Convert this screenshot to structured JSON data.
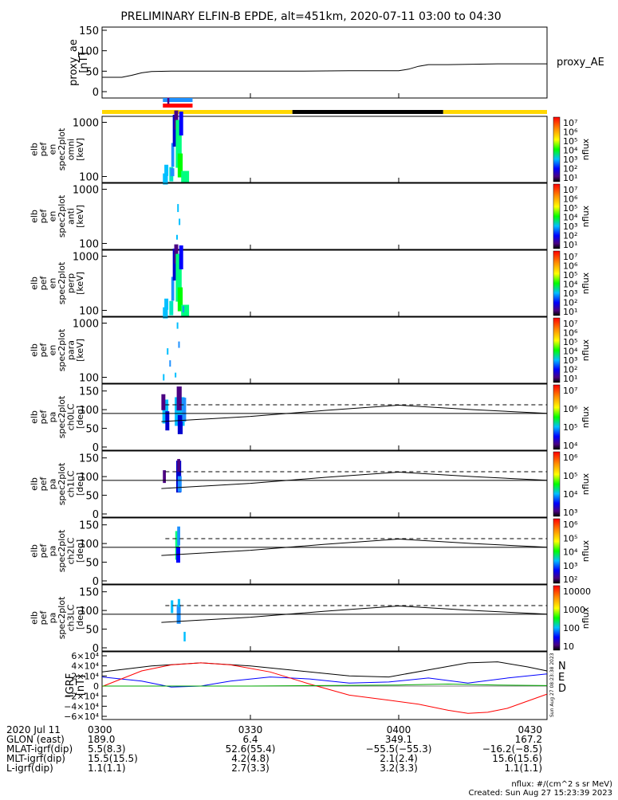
{
  "title": "PRELIMINARY ELFIN-B EPDE, alt=451km, 2020-07-11 03:00 to 04:30",
  "colors": {
    "bar_blue": "#1e90ff",
    "bar_red": "#ff0000",
    "sun_yellow": "#ffd700",
    "shadow_black": "#000000",
    "grf_n": "#000000",
    "grf_e": "#0000ff",
    "grf_d": "#ff0000",
    "grf_green": "#00aa00"
  },
  "panels": [
    {
      "id": "proxy_ae",
      "ylabel": [
        "proxy_ae",
        "[nT]"
      ],
      "right_label": "proxy_AE",
      "ticks": [
        "150",
        "100",
        "50",
        "0"
      ]
    },
    {
      "id": "omni",
      "ylabel": [
        "elb",
        "pef",
        "en",
        "spec2plot",
        "omni",
        "[keV]"
      ],
      "ticks": [
        "1000",
        "100"
      ],
      "cb_label": "nflux",
      "cb_ticks": [
        "10⁷",
        "10⁶",
        "10⁵",
        "10⁴",
        "10³",
        "10²",
        "10¹"
      ]
    },
    {
      "id": "anti",
      "ylabel": [
        "elb",
        "pef",
        "en",
        "spec2plot",
        "anti",
        "[keV]"
      ],
      "ticks": [
        "1000",
        "100"
      ],
      "cb_label": "nflux",
      "cb_ticks": [
        "10⁷",
        "10⁶",
        "10⁵",
        "10⁴",
        "10³",
        "10²",
        "10¹"
      ]
    },
    {
      "id": "perp",
      "ylabel": [
        "elb",
        "pef",
        "en",
        "spec2plot",
        "perp",
        "[keV]"
      ],
      "ticks": [
        "1000",
        "100"
      ],
      "cb_label": "nflux",
      "cb_ticks": [
        "10⁷",
        "10⁶",
        "10⁵",
        "10⁴",
        "10³",
        "10²",
        "10¹"
      ]
    },
    {
      "id": "para",
      "ylabel": [
        "elb",
        "pef",
        "en",
        "spec2plot",
        "para",
        "[keV]"
      ],
      "ticks": [
        "1000",
        "100"
      ],
      "cb_label": "nflux",
      "cb_ticks": [
        "10⁷",
        "10⁶",
        "10⁵",
        "10⁴",
        "10³",
        "10²",
        "10¹"
      ]
    },
    {
      "id": "ch0LC",
      "ylabel": [
        "elb",
        "pef",
        "pa",
        "spec2plot",
        "ch0LC",
        "[deg]"
      ],
      "ticks": [
        "150",
        "100",
        "50",
        "0"
      ],
      "cb_label": "nflux",
      "cb_ticks": [
        "10⁷",
        "10⁶",
        "10⁵",
        "10⁴"
      ]
    },
    {
      "id": "ch1LC",
      "ylabel": [
        "elb",
        "pef",
        "pa",
        "spec2plot",
        "ch1LC",
        "[deg]"
      ],
      "ticks": [
        "150",
        "100",
        "50",
        "0"
      ],
      "cb_label": "nflux",
      "cb_ticks": [
        "10⁶",
        "10⁵",
        "10⁴",
        "10³"
      ]
    },
    {
      "id": "ch2LC",
      "ylabel": [
        "elb",
        "pef",
        "pa",
        "spec2plot",
        "ch2LC",
        "[deg]"
      ],
      "ticks": [
        "150",
        "100",
        "50",
        "0"
      ],
      "cb_label": "nflux",
      "cb_ticks": [
        "10⁶",
        "10⁵",
        "10⁴",
        "10³",
        "10²"
      ]
    },
    {
      "id": "ch3LC",
      "ylabel": [
        "elb",
        "pef",
        "pa",
        "spec2plot",
        "ch3LC",
        "[deg]"
      ],
      "ticks": [
        "150",
        "100",
        "50",
        "0"
      ],
      "cb_label": "nflux",
      "cb_ticks": [
        "10000",
        "1000",
        "100",
        "10"
      ]
    },
    {
      "id": "igrf",
      "ylabel": [
        "IGRF",
        "[nT]"
      ],
      "ticks": [
        "6×10⁴",
        "4×10⁴",
        "2×10⁴",
        "0",
        "−2×10⁴",
        "−4×10⁴",
        "−6×10⁴"
      ],
      "legend": [
        "N",
        "E",
        "D"
      ]
    }
  ],
  "chart_data": {
    "type": "line",
    "title": "PRELIMINARY ELFIN-B EPDE, alt=451km, 2020-07-11 03:00 to 04:30",
    "x_range_minutes": [
      0,
      90
    ],
    "x_tick_labels": [
      "0300",
      "0330",
      "0400",
      "0430"
    ],
    "x_tick_minutes": [
      0,
      30,
      60,
      90
    ],
    "proxy_ae": {
      "ylim": [
        0,
        150
      ],
      "x": [
        0,
        4,
        6,
        8,
        10,
        14,
        20,
        30,
        40,
        50,
        60,
        62,
        64,
        66,
        70,
        80,
        90
      ],
      "y": [
        35,
        35,
        40,
        46,
        49,
        50,
        50,
        50,
        50,
        51,
        51,
        55,
        62,
        66,
        66,
        68,
        68
      ]
    },
    "sun_bar": [
      {
        "from": 0,
        "to": 38.5,
        "state": "sunlit"
      },
      {
        "from": 38.5,
        "to": 69,
        "state": "shadow"
      },
      {
        "from": 69,
        "to": 90,
        "state": "sunlit"
      }
    ],
    "science_bars": [
      {
        "from": 12.3,
        "to": 18.3,
        "color": "blue"
      },
      {
        "from": 12.3,
        "to": 18.3,
        "color": "red"
      }
    ],
    "pa_reference": {
      "solid_90": 90,
      "loss_cone_x": [
        12,
        30,
        45,
        60,
        75,
        90
      ],
      "loss_cone_y": [
        68,
        82,
        98,
        112,
        100,
        90
      ],
      "antiloss_cone_dashed": 113
    },
    "igrf": {
      "ylim": [
        -60000,
        60000
      ],
      "series": [
        {
          "name": "N",
          "x": [
            0,
            10,
            20,
            30,
            40,
            50,
            58,
            66,
            74,
            80,
            86,
            90
          ],
          "y": [
            28000,
            40000,
            46000,
            40000,
            30000,
            20000,
            18000,
            32000,
            46000,
            48000,
            38000,
            30000
          ]
        },
        {
          "name": "E",
          "x": [
            0,
            8,
            14,
            20,
            26,
            34,
            42,
            50,
            58,
            66,
            74,
            82,
            90
          ],
          "y": [
            18000,
            10000,
            -2000,
            0,
            10000,
            18000,
            14000,
            6000,
            8000,
            16000,
            6000,
            16000,
            24000
          ]
        },
        {
          "name": "D",
          "x": [
            0,
            8,
            14,
            20,
            26,
            34,
            42,
            50,
            58,
            64,
            70,
            74,
            78,
            82,
            86,
            90
          ],
          "y": [
            -1000,
            30000,
            42000,
            46000,
            42000,
            28000,
            4000,
            -18000,
            -28000,
            -36000,
            -48000,
            -54000,
            -52000,
            -44000,
            -30000,
            -16000
          ]
        },
        {
          "name": "",
          "x": [
            0,
            30,
            60,
            70,
            80,
            90
          ],
          "y": [
            0,
            0,
            2000,
            4000,
            2000,
            1000
          ]
        }
      ]
    }
  },
  "footer": {
    "labels": [
      "2020 Jul 11",
      "GLON (east)",
      "MLAT-igrf(dip)",
      "MLT-igrf(dip)",
      "L-igrf(dip)"
    ],
    "columns": [
      [
        "0300",
        "189.0",
        "5.5(8.3)",
        "15.5(15.5)",
        "1.1(1.1)"
      ],
      [
        "0330",
        "6.4",
        "52.6(55.4)",
        "4.2(4.8)",
        "2.7(3.3)"
      ],
      [
        "0400",
        "349.1",
        "−55.5(−55.3)",
        "2.1(2.4)",
        "3.2(3.3)"
      ],
      [
        "0430",
        "167.2",
        "−16.2(−8.5)",
        "15.6(15.6)",
        "1.1(1.1)"
      ]
    ],
    "units_note": "nflux: #/(cm^2 s sr MeV)",
    "created": "Created: Sun Aug 27 15:23:39 2023",
    "side_stamp": "Sun Aug 27 08:23:38 2023"
  }
}
